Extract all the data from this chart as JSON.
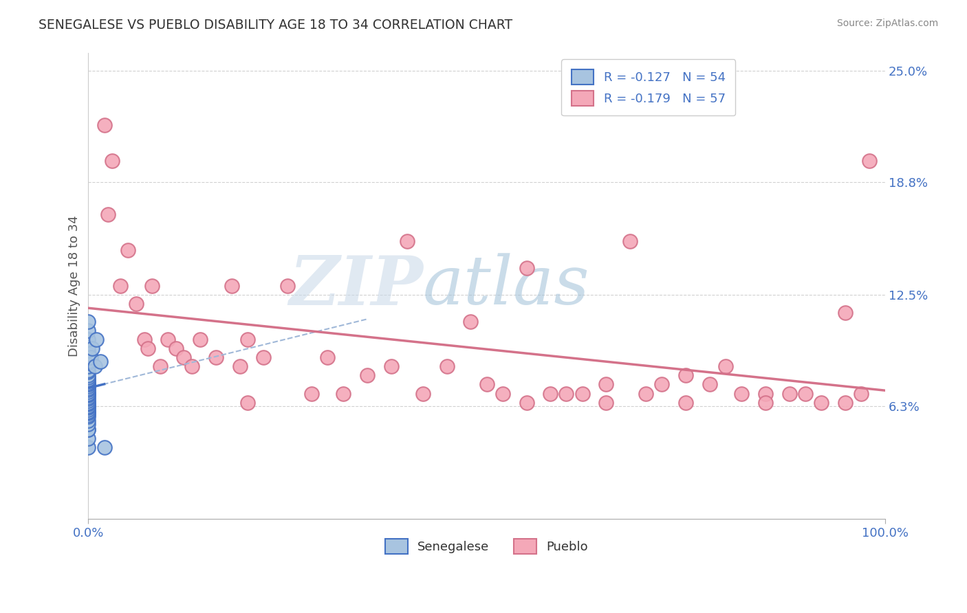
{
  "title": "SENEGALESE VS PUEBLO DISABILITY AGE 18 TO 34 CORRELATION CHART",
  "source": "Source: ZipAtlas.com",
  "ylabel": "Disability Age 18 to 34",
  "xlim": [
    0.0,
    1.0
  ],
  "ylim": [
    0.0,
    0.26
  ],
  "ytick_labels": [
    "6.3%",
    "12.5%",
    "18.8%",
    "25.0%"
  ],
  "ytick_values": [
    0.063,
    0.125,
    0.188,
    0.25
  ],
  "legend_label1": "R = -0.127   N = 54",
  "legend_label2": "R = -0.179   N = 57",
  "legend_bottom_label1": "Senegalese",
  "legend_bottom_label2": "Pueblo",
  "color_senegalese": "#a8c4e0",
  "color_pueblo": "#f4a8b8",
  "color_trendline_senegalese": "#4472c4",
  "color_trendline_pueblo": "#d4728a",
  "color_trendline_dashed": "#a0b8d8",
  "grid_color": "#cccccc",
  "background_color": "#ffffff",
  "watermark_zip": "ZIP",
  "watermark_atlas": "atlas",
  "text_blue": "#4472c4",
  "senegalese_x": [
    0.0,
    0.0,
    0.0,
    0.0,
    0.0,
    0.0,
    0.0,
    0.0,
    0.0,
    0.0,
    0.0,
    0.0,
    0.0,
    0.0,
    0.0,
    0.0,
    0.0,
    0.0,
    0.0,
    0.0,
    0.0,
    0.0,
    0.0,
    0.0,
    0.0,
    0.0,
    0.0,
    0.0,
    0.0,
    0.0,
    0.0,
    0.0,
    0.0,
    0.0,
    0.0,
    0.0,
    0.0,
    0.0,
    0.0,
    0.0,
    0.0,
    0.0,
    0.0,
    0.0,
    0.0,
    0.0,
    0.0,
    0.0,
    0.003,
    0.005,
    0.008,
    0.01,
    0.015,
    0.02
  ],
  "senegalese_y": [
    0.04,
    0.045,
    0.05,
    0.05,
    0.053,
    0.055,
    0.057,
    0.058,
    0.059,
    0.06,
    0.06,
    0.061,
    0.062,
    0.063,
    0.063,
    0.064,
    0.065,
    0.065,
    0.066,
    0.067,
    0.068,
    0.069,
    0.07,
    0.07,
    0.07,
    0.071,
    0.072,
    0.073,
    0.074,
    0.075,
    0.075,
    0.076,
    0.077,
    0.078,
    0.079,
    0.08,
    0.082,
    0.083,
    0.085,
    0.087,
    0.088,
    0.09,
    0.092,
    0.094,
    0.096,
    0.1,
    0.105,
    0.11,
    0.09,
    0.095,
    0.085,
    0.1,
    0.088,
    0.04
  ],
  "pueblo_x": [
    0.02,
    0.025,
    0.03,
    0.04,
    0.05,
    0.06,
    0.07,
    0.075,
    0.08,
    0.09,
    0.1,
    0.11,
    0.12,
    0.13,
    0.14,
    0.16,
    0.18,
    0.19,
    0.2,
    0.22,
    0.25,
    0.28,
    0.3,
    0.32,
    0.35,
    0.38,
    0.42,
    0.45,
    0.48,
    0.5,
    0.52,
    0.55,
    0.58,
    0.6,
    0.62,
    0.65,
    0.68,
    0.7,
    0.72,
    0.75,
    0.78,
    0.8,
    0.82,
    0.85,
    0.88,
    0.9,
    0.92,
    0.95,
    0.97,
    0.98,
    0.4,
    0.55,
    0.65,
    0.75,
    0.85,
    0.95,
    0.2
  ],
  "pueblo_y": [
    0.22,
    0.17,
    0.2,
    0.13,
    0.15,
    0.12,
    0.1,
    0.095,
    0.13,
    0.085,
    0.1,
    0.095,
    0.09,
    0.085,
    0.1,
    0.09,
    0.13,
    0.085,
    0.1,
    0.09,
    0.13,
    0.07,
    0.09,
    0.07,
    0.08,
    0.085,
    0.07,
    0.085,
    0.11,
    0.075,
    0.07,
    0.14,
    0.07,
    0.07,
    0.07,
    0.075,
    0.155,
    0.07,
    0.075,
    0.08,
    0.075,
    0.085,
    0.07,
    0.07,
    0.07,
    0.07,
    0.065,
    0.065,
    0.07,
    0.2,
    0.155,
    0.065,
    0.065,
    0.065,
    0.065,
    0.115,
    0.065
  ]
}
